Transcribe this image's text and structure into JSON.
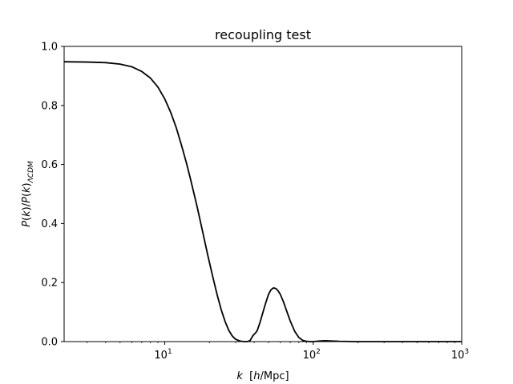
{
  "chart_data": {
    "type": "line",
    "title": "recoupling test",
    "xlabel": "k  [h/Mpc]",
    "ylabel": "P(k)/P(k)ΛCDM",
    "xscale": "log",
    "xlim": [
      2.1,
      1000
    ],
    "ylim": [
      0,
      1.0
    ],
    "grid": false,
    "y_ticks": [
      0.0,
      0.2,
      0.4,
      0.6,
      0.8,
      1.0
    ],
    "y_tick_labels": [
      "0.0",
      "0.2",
      "0.4",
      "0.6",
      "0.8",
      "1.0"
    ],
    "x_ticks": [
      10,
      100,
      1000
    ],
    "x_tick_labels": [
      {
        "base": "10",
        "exp": "1"
      },
      {
        "base": "10",
        "exp": "2"
      },
      {
        "base": "10",
        "exp": "3"
      }
    ],
    "series": [
      {
        "color": "#000000",
        "x": [
          2.1,
          3.0,
          4.0,
          5.0,
          6.0,
          7.0,
          8.0,
          9.0,
          10.0,
          11.0,
          12.0,
          13.0,
          14.0,
          15.0,
          16.5,
          18.0,
          19.5,
          21.0,
          22.5,
          24.0,
          25.5,
          27.0,
          28.5,
          30.0,
          32.0,
          34.0,
          36.0,
          37.5,
          39.0,
          40.0,
          41.0,
          42.0,
          44.0,
          46.0,
          48.0,
          50.0,
          52.0,
          54.0,
          56.0,
          58.0,
          60.0,
          63.0,
          66.0,
          70.0,
          75.0,
          80.0,
          85.0,
          90.0,
          95.0,
          100.0,
          110.0,
          120.0,
          135.0,
          150.0,
          200.0,
          300.0,
          500.0,
          1000.0
        ],
        "y": [
          0.948,
          0.947,
          0.945,
          0.94,
          0.931,
          0.915,
          0.893,
          0.862,
          0.822,
          0.775,
          0.722,
          0.663,
          0.605,
          0.545,
          0.458,
          0.372,
          0.292,
          0.222,
          0.16,
          0.108,
          0.068,
          0.038,
          0.019,
          0.008,
          0.002,
          0.0,
          0.0,
          0.003,
          0.018,
          0.025,
          0.03,
          0.038,
          0.068,
          0.102,
          0.133,
          0.16,
          0.176,
          0.182,
          0.18,
          0.172,
          0.16,
          0.135,
          0.106,
          0.07,
          0.035,
          0.014,
          0.004,
          0.001,
          0.0,
          0.0,
          0.002,
          0.003,
          0.002,
          0.001,
          0.0,
          0.0,
          0.0,
          0.0
        ]
      }
    ]
  }
}
